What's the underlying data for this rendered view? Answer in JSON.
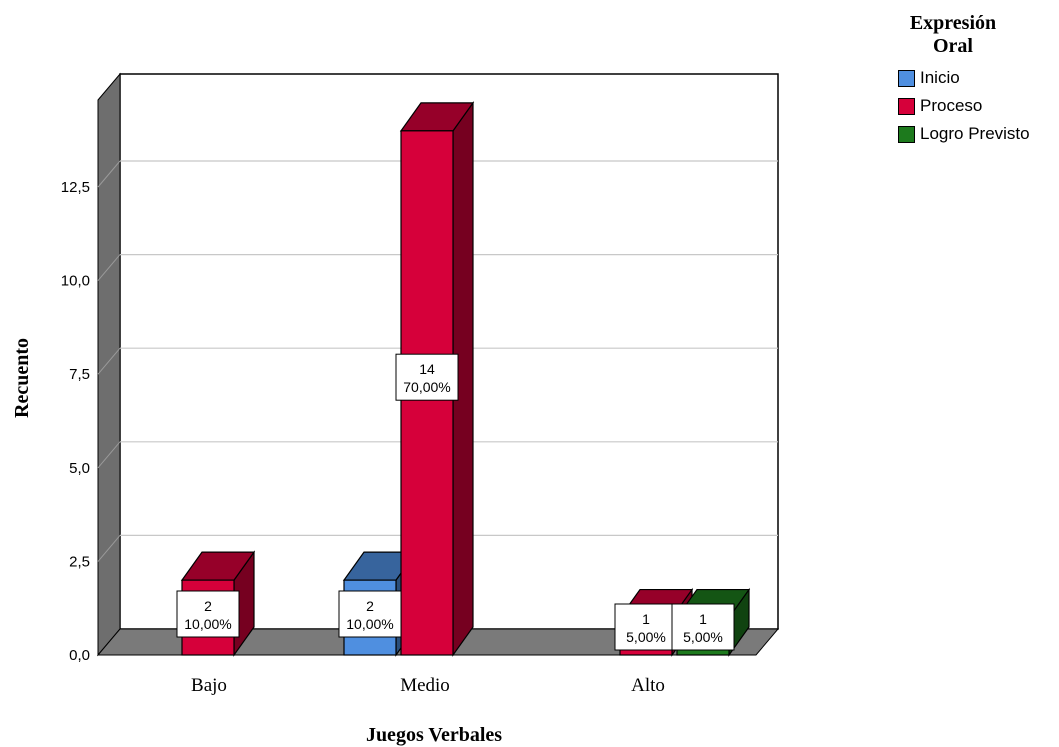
{
  "chart_data": {
    "type": "bar",
    "xlabel": "Juegos Verbales",
    "ylabel": "Recuento",
    "categories": [
      "Bajo",
      "Medio",
      "Alto"
    ],
    "yticks": [
      "0,0",
      "2,5",
      "5,0",
      "7,5",
      "10,0",
      "12,5"
    ],
    "ylim": [
      0,
      15
    ],
    "legend": {
      "title_line1": "Expresión",
      "title_line2": "Oral",
      "position": "top-right"
    },
    "series": [
      {
        "name": "Inicio",
        "color": "#4f8fe0",
        "values": [
          0,
          2,
          0
        ],
        "labels": [
          "",
          "10,00%",
          ""
        ]
      },
      {
        "name": "Proceso",
        "color": "#d6003a",
        "values": [
          2,
          14,
          1
        ],
        "labels": [
          "10,00%",
          "70,00%",
          "5,00%"
        ]
      },
      {
        "name": "Logro Previsto",
        "color": "#1d7a1d",
        "values": [
          0,
          0,
          1
        ],
        "labels": [
          "",
          "",
          "5,00%"
        ]
      }
    ],
    "grid": true,
    "style": "3d-bar"
  }
}
